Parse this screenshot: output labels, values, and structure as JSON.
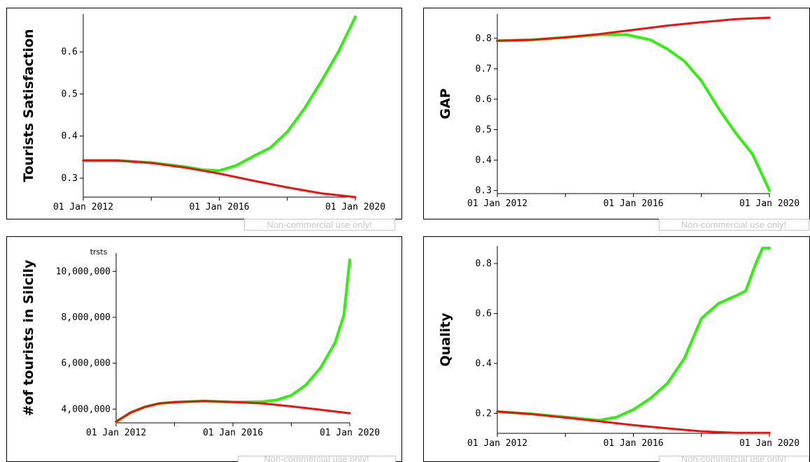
{
  "colors": {
    "green": "#33ee11",
    "red": "#ee1111",
    "watermark": "#c8c8c8"
  },
  "watermark": "Non-commercial use only!",
  "chart_data": [
    {
      "type": "line",
      "ylabel": "Tourists Satisfaction",
      "unit": "",
      "x_ticks": [
        "01 Jan 2012",
        "01 Jan 2016",
        "01 Jan 2020"
      ],
      "xlim": [
        2012,
        2020
      ],
      "ylim": [
        0.255,
        0.69
      ],
      "y_ticks": [
        {
          "v": 0.3,
          "label": "0.3"
        },
        {
          "v": 0.4,
          "label": "0.4"
        },
        {
          "v": 0.5,
          "label": "0.5"
        },
        {
          "v": 0.6,
          "label": "0.6"
        }
      ],
      "series": [
        {
          "color": "#33ee11",
          "x": [
            2012,
            2013,
            2014,
            2015,
            2015.5,
            2016,
            2016.5,
            2017,
            2017.5,
            2018,
            2018.5,
            2019,
            2019.5,
            2020
          ],
          "y": [
            0.342,
            0.342,
            0.337,
            0.327,
            0.32,
            0.318,
            0.33,
            0.352,
            0.372,
            0.41,
            0.465,
            0.53,
            0.6,
            0.683
          ]
        },
        {
          "color": "#ee1111",
          "x": [
            2012,
            2013,
            2014,
            2015,
            2016,
            2017,
            2018,
            2019,
            2020
          ],
          "y": [
            0.342,
            0.342,
            0.336,
            0.325,
            0.311,
            0.294,
            0.278,
            0.264,
            0.255
          ]
        }
      ]
    },
    {
      "type": "line",
      "ylabel": "GAP",
      "unit": "",
      "x_ticks": [
        "01 Jan 2012",
        "01 Jan 2016",
        "01 Jan 2020"
      ],
      "xlim": [
        2012,
        2020
      ],
      "ylim": [
        0.29,
        0.88
      ],
      "y_ticks": [
        {
          "v": 0.3,
          "label": "0.3"
        },
        {
          "v": 0.4,
          "label": "0.4"
        },
        {
          "v": 0.5,
          "label": "0.5"
        },
        {
          "v": 0.6,
          "label": "0.6"
        },
        {
          "v": 0.7,
          "label": "0.7"
        },
        {
          "v": 0.8,
          "label": "0.8"
        }
      ],
      "series": [
        {
          "color": "#33ee11",
          "x": [
            2012,
            2013,
            2014,
            2015,
            2015.8,
            2016.5,
            2017,
            2017.5,
            2018,
            2018.5,
            2019,
            2019.5,
            2020
          ],
          "y": [
            0.792,
            0.795,
            0.803,
            0.812,
            0.812,
            0.795,
            0.765,
            0.725,
            0.66,
            0.57,
            0.49,
            0.42,
            0.3
          ]
        },
        {
          "color": "#ee1111",
          "x": [
            2012,
            2013,
            2014,
            2015,
            2016,
            2017,
            2018,
            2019,
            2020
          ],
          "y": [
            0.792,
            0.795,
            0.803,
            0.814,
            0.828,
            0.842,
            0.853,
            0.863,
            0.868
          ]
        }
      ]
    },
    {
      "type": "line",
      "ylabel": "#of tourists in Silcily",
      "unit": "trsts",
      "x_ticks": [
        "01 Jan 2012",
        "01 Jan 2016",
        "01 Jan 2020"
      ],
      "xlim": [
        2012,
        2020
      ],
      "ylim": [
        3400000,
        10800000
      ],
      "y_ticks": [
        {
          "v": 4000000,
          "label": "4,000,000"
        },
        {
          "v": 6000000,
          "label": "6,000,000"
        },
        {
          "v": 8000000,
          "label": "8,000,000"
        },
        {
          "v": 10000000,
          "label": "10,000,000"
        }
      ],
      "series": [
        {
          "color": "#33ee11",
          "x": [
            2012,
            2012.5,
            2013,
            2013.5,
            2014,
            2015,
            2016,
            2017,
            2017.5,
            2018,
            2018.5,
            2019,
            2019.5,
            2019.8,
            2020
          ],
          "y": [
            3450000,
            3850000,
            4100000,
            4250000,
            4300000,
            4350000,
            4300000,
            4320000,
            4400000,
            4600000,
            5050000,
            5800000,
            6900000,
            8100000,
            10500000
          ]
        },
        {
          "color": "#ee1111",
          "x": [
            2012,
            2012.5,
            2013,
            2013.5,
            2014,
            2015,
            2016,
            2017,
            2018,
            2019,
            2020
          ],
          "y": [
            3450000,
            3850000,
            4100000,
            4250000,
            4300000,
            4350000,
            4310000,
            4250000,
            4120000,
            3970000,
            3820000
          ]
        }
      ]
    },
    {
      "type": "line",
      "ylabel": "Quality",
      "unit": "",
      "x_ticks": [
        "01 Jan 2012",
        "01 Jan 2016",
        "01 Jan 2020"
      ],
      "xlim": [
        2012,
        2020
      ],
      "ylim": [
        0.12,
        0.87
      ],
      "y_ticks": [
        {
          "v": 0.2,
          "label": "0.2"
        },
        {
          "v": 0.4,
          "label": "0.4"
        },
        {
          "v": 0.6,
          "label": "0.6"
        },
        {
          "v": 0.8,
          "label": "0.8"
        }
      ],
      "series": [
        {
          "color": "#33ee11",
          "x": [
            2012,
            2013,
            2014,
            2015,
            2015.5,
            2016,
            2016.5,
            2017,
            2017.5,
            2018,
            2018.5,
            2019,
            2019.3,
            2019.6,
            2019.8,
            2020
          ],
          "y": [
            0.207,
            0.198,
            0.185,
            0.172,
            0.185,
            0.215,
            0.26,
            0.32,
            0.42,
            0.58,
            0.64,
            0.67,
            0.69,
            0.8,
            0.862,
            0.862
          ]
        },
        {
          "color": "#ee1111",
          "x": [
            2012,
            2013,
            2014,
            2015,
            2016,
            2017,
            2018,
            2019,
            2020
          ],
          "y": [
            0.207,
            0.197,
            0.183,
            0.168,
            0.153,
            0.14,
            0.128,
            0.122,
            0.122
          ]
        }
      ]
    }
  ]
}
